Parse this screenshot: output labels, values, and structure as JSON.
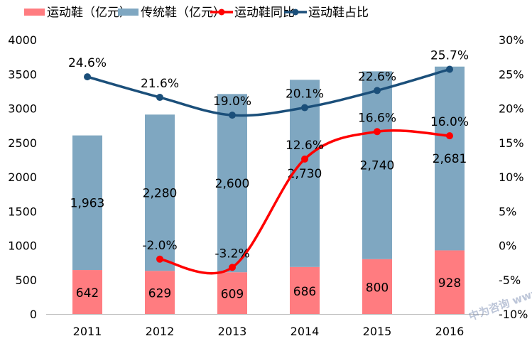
{
  "chart_data": {
    "type": "bar",
    "categories": [
      "2011",
      "2012",
      "2013",
      "2014",
      "2015",
      "2016"
    ],
    "series": [
      {
        "name": "运动鞋（亿元）",
        "kind": "stacked-bar",
        "axis": "left",
        "color": "#FF7C80",
        "values": [
          642,
          629,
          609,
          686,
          800,
          928
        ],
        "labels": [
          "642",
          "629",
          "609",
          "686",
          "800",
          "928"
        ]
      },
      {
        "name": "传统鞋（亿元）",
        "kind": "stacked-bar",
        "axis": "left",
        "color": "#7FA7C1",
        "values": [
          1963,
          2280,
          2600,
          2730,
          2740,
          2681
        ],
        "labels": [
          "1,963",
          "2,280",
          "2,600",
          "2,730",
          "2,740",
          "2,681"
        ]
      },
      {
        "name": "运动鞋同比",
        "kind": "line",
        "axis": "right",
        "color": "#FF0000",
        "values": [
          null,
          -2.0,
          -3.2,
          12.6,
          16.6,
          16.0
        ],
        "labels": [
          null,
          "-2.0%",
          "-3.2%",
          "12.6%",
          "16.6%",
          "16.0%"
        ]
      },
      {
        "name": "运动鞋占比",
        "kind": "line",
        "axis": "right",
        "color": "#1B4F7A",
        "values": [
          24.6,
          21.6,
          19.0,
          20.1,
          22.6,
          25.7
        ],
        "labels": [
          "24.6%",
          "21.6%",
          "19.0%",
          "20.1%",
          "22.6%",
          "25.7%"
        ]
      }
    ],
    "y_left": {
      "min": 0,
      "max": 4000,
      "step": 500,
      "ticks": [
        "0",
        "500",
        "1000",
        "1500",
        "2000",
        "2500",
        "3000",
        "3500",
        "4000"
      ]
    },
    "y_right": {
      "min": -10,
      "max": 30,
      "step": 5,
      "ticks": [
        "-10%",
        "-5%",
        "0%",
        "5%",
        "10%",
        "15%",
        "20%",
        "25%",
        "30%"
      ]
    },
    "legend_position": "top",
    "grid": false,
    "watermark": "中为咨询 www.zwzyzx.com"
  }
}
